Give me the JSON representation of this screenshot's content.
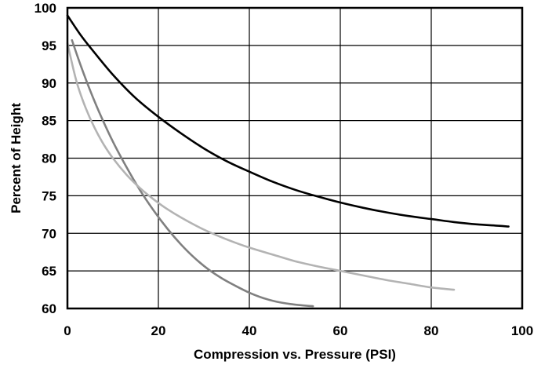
{
  "chart_data": {
    "type": "line",
    "title": "",
    "xlabel": "Compression vs. Pressure (PSI)",
    "ylabel": "Percent of Height",
    "xlim": [
      0,
      100
    ],
    "ylim": [
      60,
      100
    ],
    "xticks": [
      0,
      20,
      40,
      60,
      80,
      100
    ],
    "yticks": [
      60,
      65,
      70,
      75,
      80,
      85,
      90,
      95,
      100
    ],
    "grid": true,
    "legend": "none",
    "series": [
      {
        "color": "#000000",
        "x": [
          0,
          3,
          6,
          10,
          15,
          20,
          25,
          30,
          35,
          40,
          45,
          50,
          55,
          60,
          65,
          70,
          75,
          80,
          85,
          90,
          95,
          97
        ],
        "y": [
          99,
          96.3,
          94,
          91.1,
          88,
          85.5,
          83.3,
          81.3,
          79.6,
          78.2,
          76.9,
          75.8,
          74.9,
          74.1,
          73.4,
          72.8,
          72.3,
          71.9,
          71.5,
          71.2,
          71,
          70.9
        ]
      },
      {
        "color": "#808080",
        "x": [
          1,
          3,
          5,
          7,
          10,
          13,
          16,
          19,
          22,
          25,
          28,
          31,
          34,
          37,
          40,
          43,
          46,
          49,
          52,
          54
        ],
        "y": [
          95.7,
          92.2,
          89,
          86.1,
          82.2,
          78.8,
          75.7,
          73,
          70.6,
          68.5,
          66.7,
          65.2,
          64,
          63,
          62.1,
          61.4,
          60.9,
          60.6,
          60.4,
          60.3
        ]
      },
      {
        "color": "#b3b3b3",
        "x": [
          0,
          2,
          4,
          6,
          8,
          10,
          13,
          16,
          19,
          22,
          25,
          30,
          35,
          40,
          45,
          50,
          55,
          60,
          65,
          70,
          75,
          80,
          85
        ],
        "y": [
          95.3,
          90.2,
          86.7,
          84,
          81.8,
          80,
          77.8,
          76,
          74.5,
          73.2,
          72.1,
          70.5,
          69.2,
          68.1,
          67.2,
          66.3,
          65.6,
          65,
          64.4,
          63.8,
          63.3,
          62.8,
          62.5
        ]
      }
    ]
  }
}
